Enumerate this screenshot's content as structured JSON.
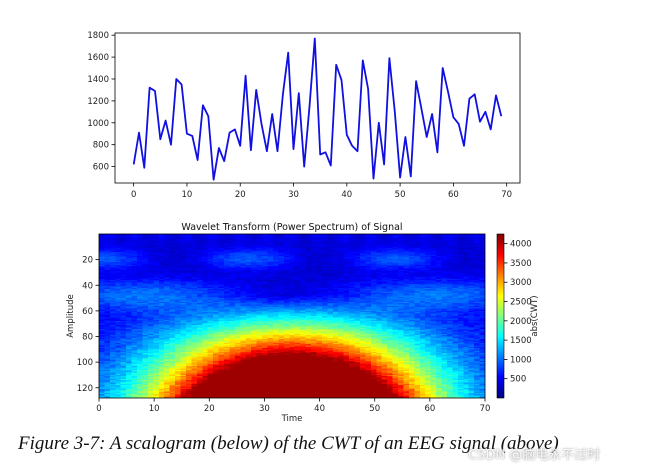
{
  "chart_data": [
    {
      "type": "line",
      "title": "",
      "xlabel": "",
      "ylabel": "",
      "x": [
        0,
        1,
        2,
        3,
        4,
        5,
        6,
        7,
        8,
        9,
        10,
        11,
        12,
        13,
        14,
        15,
        16,
        17,
        18,
        19,
        20,
        21,
        22,
        23,
        24,
        25,
        26,
        27,
        28,
        29,
        30,
        31,
        32,
        33,
        34,
        35,
        36,
        37,
        38,
        39,
        40,
        41,
        42,
        43,
        44,
        45,
        46,
        47,
        48,
        49,
        50,
        51,
        52,
        53,
        54,
        55,
        56,
        57,
        58,
        59,
        60,
        61,
        62,
        63,
        64,
        65,
        66,
        67,
        68,
        69
      ],
      "values": [
        620,
        910,
        590,
        1320,
        1290,
        850,
        1020,
        800,
        1400,
        1350,
        900,
        880,
        660,
        1160,
        1060,
        480,
        770,
        650,
        910,
        940,
        790,
        1430,
        750,
        1300,
        990,
        740,
        1080,
        740,
        1260,
        1640,
        760,
        1270,
        600,
        1150,
        1770,
        710,
        730,
        610,
        1530,
        1390,
        890,
        790,
        740,
        1570,
        1310,
        490,
        1000,
        620,
        1590,
        1100,
        500,
        870,
        510,
        1380,
        1130,
        870,
        1080,
        730,
        1500,
        1280,
        1050,
        990,
        790,
        1220,
        1260,
        1010,
        1100,
        940,
        1250,
        1060
      ],
      "xlim": [
        -3.5,
        72.5
      ],
      "ylim": [
        450,
        1820
      ],
      "xticks": [
        0,
        10,
        20,
        30,
        40,
        50,
        60,
        70
      ],
      "yticks": [
        600,
        800,
        1000,
        1200,
        1400,
        1600,
        1800
      ],
      "color": "#1010e0"
    },
    {
      "type": "heatmap",
      "title": "Wavelet Transform (Power Spectrum) of Signal",
      "xlabel": "Time",
      "ylabel": "Amplitude",
      "xlim": [
        0,
        70
      ],
      "ylim": [
        128,
        0
      ],
      "xticks": [
        0,
        10,
        20,
        30,
        40,
        50,
        60,
        70
      ],
      "yticks": [
        20,
        40,
        60,
        80,
        100,
        120
      ],
      "colorbar_label": "abs(CWT)",
      "colorbar_ticks": [
        500,
        1000,
        1500,
        2000,
        2500,
        3000,
        3500,
        4000
      ],
      "colorbar_range": [
        0,
        4250
      ],
      "colormap": "jet"
    }
  ],
  "caption": "Figure 3-7: A scalogram (below) of the CWT of an EEG signal (above)",
  "watermark": "CSDN @脑电永不过时"
}
